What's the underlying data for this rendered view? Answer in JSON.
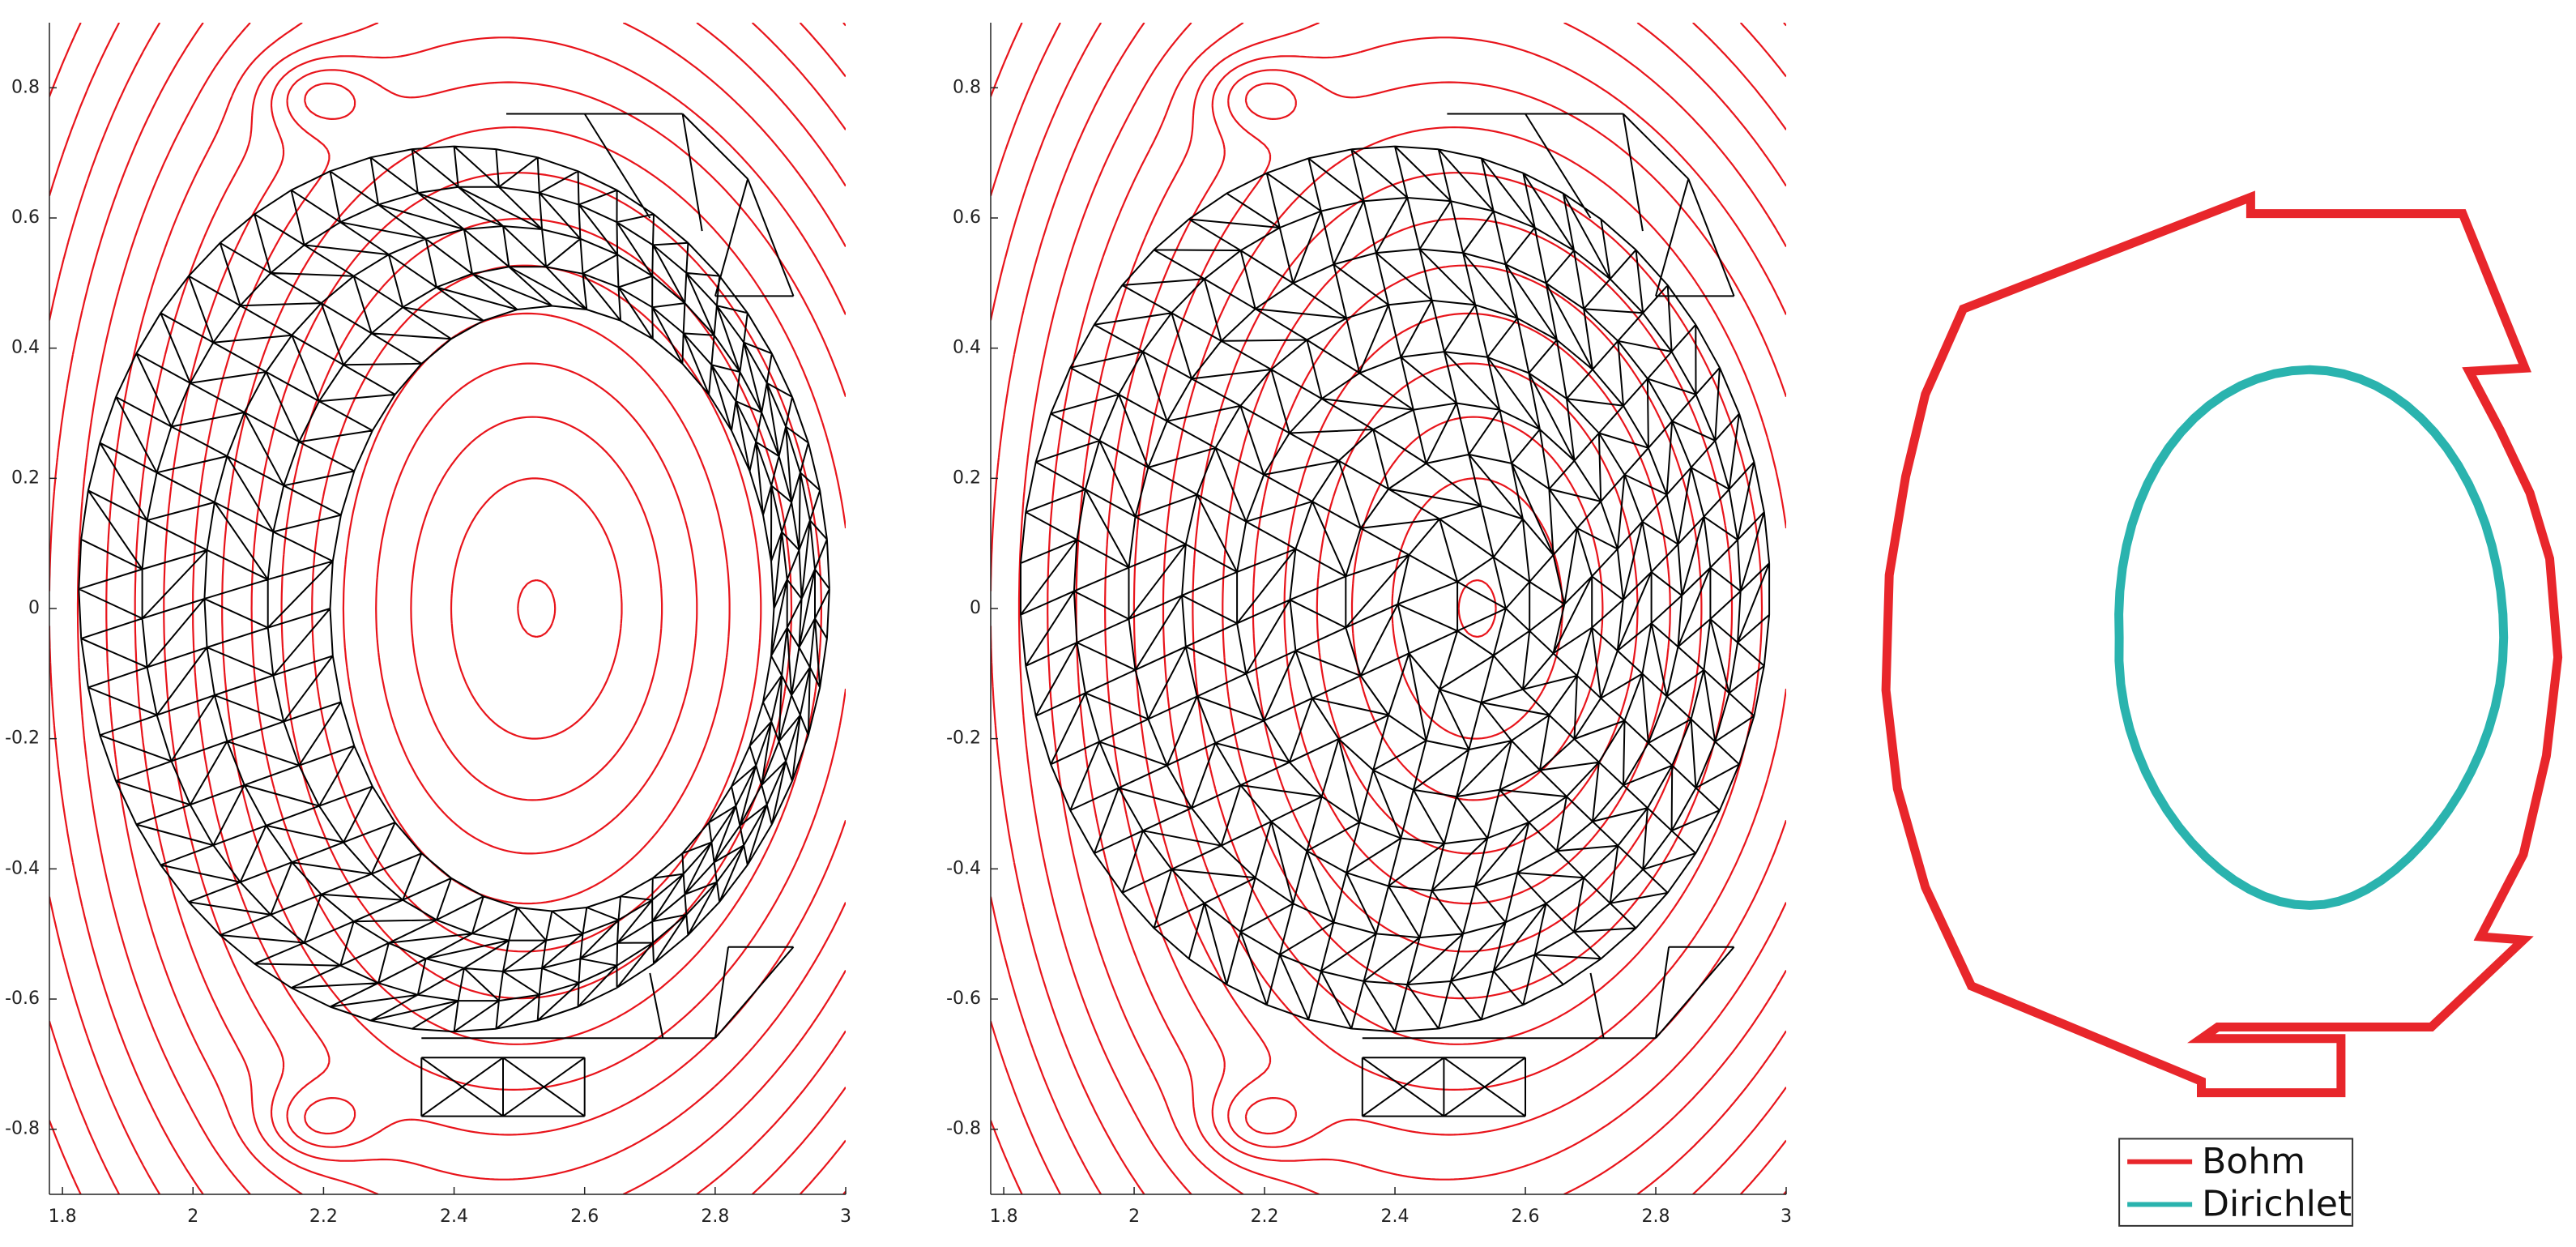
{
  "chart_data": [
    {
      "type": "contour-mesh",
      "mesh": "annulus",
      "contour_color": "#e8141b",
      "mesh_color": "#000000",
      "xlim": [
        1.78,
        3.0
      ],
      "ylim": [
        -0.9,
        0.9
      ],
      "xticks": [
        1.8,
        2,
        2.2,
        2.4,
        2.6,
        2.8,
        3
      ],
      "yticks": [
        -0.8,
        -0.6,
        -0.4,
        -0.2,
        0,
        0.2,
        0.4,
        0.6,
        0.8
      ]
    },
    {
      "type": "contour-mesh",
      "mesh": "full",
      "contour_color": "#e8141b",
      "mesh_color": "#000000",
      "xlim": [
        1.78,
        3.0
      ],
      "ylim": [
        -0.9,
        0.9
      ],
      "xticks": [
        1.8,
        2,
        2.2,
        2.4,
        2.6,
        2.8,
        3
      ],
      "yticks": [
        -0.8,
        -0.6,
        -0.4,
        -0.2,
        0,
        0.2,
        0.4,
        0.6,
        0.8
      ]
    },
    {
      "type": "boundary",
      "series": [
        {
          "name": "Bohm",
          "color": "#e8262b"
        },
        {
          "name": "Dirichlet",
          "color": "#2ab3ae"
        }
      ]
    }
  ]
}
